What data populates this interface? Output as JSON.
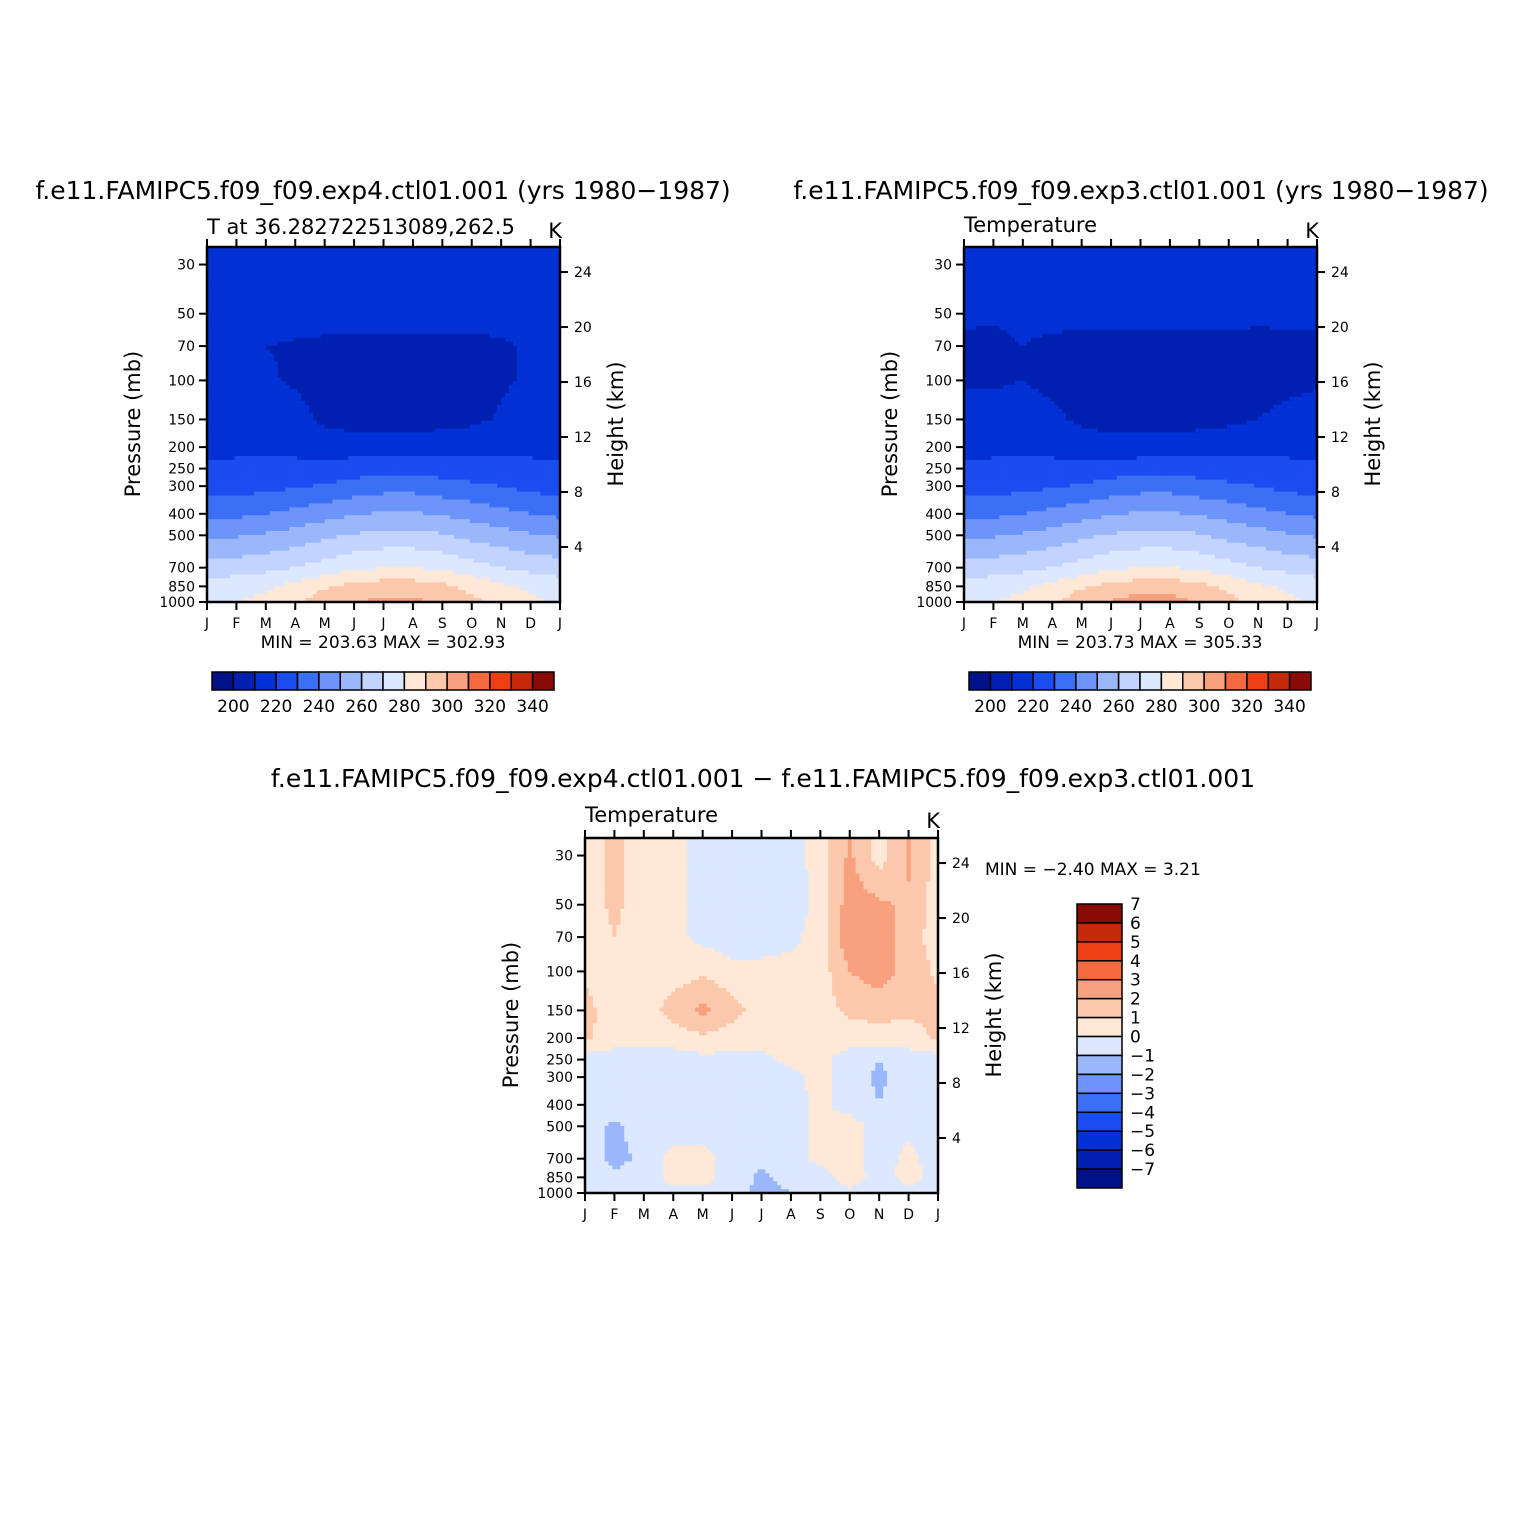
{
  "panels": [
    {
      "title": "f.e11.FAMIPC5.f09_f09.exp4.ctl01.001 (yrs 1980-1987)",
      "left_string": "T at 36.282722513089,262.5",
      "right_string": "K",
      "min_max": "MIN = 203.63 MAX = 302.93"
    },
    {
      "title": "f.e11.FAMIPC5.f09_f09.exp3.ctl01.001 (yrs 1980-1987)",
      "left_string": "Temperature",
      "right_string": "K",
      "min_max": "MIN = 203.73 MAX = 305.33"
    },
    {
      "title": "f.e11.FAMIPC5.f09_f09.exp4.ctl01.001 - f.e11.FAMIPC5.f09_f09.exp3.ctl01.001",
      "left_string": "Temperature",
      "right_string": "K",
      "min_max": "MIN = -2.40 MAX = 3.21"
    }
  ],
  "chart_data": [
    {
      "type": "heatmap",
      "plot": "pressure-month contour",
      "title": "f.e11.FAMIPC5.f09_f09.exp4.ctl01.001 (yrs 1980-1987)",
      "ylabel": "Pressure (mb)",
      "y2label": "Height (km)",
      "x_tick_labels": [
        "J",
        "F",
        "M",
        "A",
        "M",
        "J",
        "J",
        "A",
        "S",
        "O",
        "N",
        "D",
        "J"
      ],
      "y_tick_labels": [
        "30",
        "50",
        "70",
        "100",
        "150",
        "200",
        "250",
        "300",
        "400",
        "500",
        "700",
        "850",
        "1000"
      ],
      "y2_tick_labels": [
        "24",
        "20",
        "16",
        "12",
        "8",
        "4"
      ],
      "y_scale": "log (pressure, reversed)",
      "ylim": [
        1000,
        25
      ],
      "contour_levels": [
        200,
        210,
        220,
        230,
        240,
        250,
        260,
        270,
        280,
        290,
        300,
        310,
        320,
        330,
        340
      ],
      "colorbar_labels": [
        "200",
        "220",
        "240",
        "260",
        "280",
        "300",
        "320",
        "340"
      ],
      "colors": [
        "#00128a",
        "#0021b0",
        "#0331d6",
        "#1a4cf0",
        "#3b6ff5",
        "#6d94f8",
        "#9bb7fb",
        "#c2d4fd",
        "#dbe8ff",
        "#ffe8d6",
        "#fcc8ac",
        "#f8a17f",
        "#f26a3e",
        "#ec3f14",
        "#c42908",
        "#8a0b05"
      ],
      "min": 203.63,
      "max": 302.93,
      "months": [
        "J",
        "F",
        "M",
        "A",
        "M",
        "J",
        "J",
        "A",
        "S",
        "O",
        "N",
        "D",
        "J"
      ],
      "pressure_levels": [
        25,
        30,
        50,
        70,
        100,
        150,
        200,
        250,
        300,
        400,
        500,
        700,
        850,
        1000
      ],
      "values": [
        [
          218,
          219,
          219,
          219,
          219,
          219,
          218,
          216,
          215,
          214,
          215,
          217,
          218
        ],
        [
          217,
          218,
          218,
          218,
          218,
          218,
          216,
          214,
          213,
          213,
          214,
          216,
          217
        ],
        [
          215,
          215,
          215,
          214,
          214,
          213,
          213,
          213,
          213,
          213,
          213,
          214,
          215
        ],
        [
          211,
          212,
          210,
          209,
          208,
          208,
          208,
          208,
          208,
          208,
          209,
          211,
          211
        ],
        [
          211,
          212,
          211,
          209,
          207,
          206,
          206,
          206,
          206,
          207,
          209,
          211,
          211
        ],
        [
          213,
          214,
          214,
          213,
          208,
          206,
          206,
          206,
          207,
          208,
          211,
          213,
          213
        ],
        [
          218,
          219,
          219,
          218,
          216,
          215,
          215,
          215,
          215,
          216,
          217,
          218,
          218
        ],
        [
          221,
          221,
          222,
          222,
          223,
          225,
          226,
          226,
          225,
          224,
          223,
          222,
          221
        ],
        [
          226,
          226,
          227,
          229,
          231,
          234,
          236,
          236,
          234,
          232,
          230,
          227,
          226
        ],
        [
          238,
          238,
          240,
          243,
          246,
          249,
          251,
          251,
          249,
          246,
          243,
          240,
          238
        ],
        [
          249,
          249,
          251,
          254,
          258,
          261,
          263,
          263,
          261,
          257,
          254,
          251,
          249
        ],
        [
          265,
          265,
          267,
          270,
          274,
          278,
          280,
          280,
          278,
          274,
          270,
          267,
          265
        ],
        [
          275,
          276,
          278,
          283,
          289,
          293,
          295,
          295,
          292,
          287,
          282,
          278,
          275
        ],
        [
          279,
          280,
          283,
          289,
          295,
          300,
          302,
          302,
          298,
          292,
          287,
          282,
          279
        ]
      ]
    },
    {
      "type": "heatmap",
      "plot": "pressure-month contour",
      "title": "f.e11.FAMIPC5.f09_f09.exp3.ctl01.001 (yrs 1980-1987)",
      "ylabel": "Pressure (mb)",
      "y2label": "Height (km)",
      "x_tick_labels": [
        "J",
        "F",
        "M",
        "A",
        "M",
        "J",
        "J",
        "A",
        "S",
        "O",
        "N",
        "D",
        "J"
      ],
      "y_tick_labels": [
        "30",
        "50",
        "70",
        "100",
        "150",
        "200",
        "250",
        "300",
        "400",
        "500",
        "700",
        "850",
        "1000"
      ],
      "y2_tick_labels": [
        "24",
        "20",
        "16",
        "12",
        "8",
        "4"
      ],
      "y_scale": "log (pressure, reversed)",
      "ylim": [
        1000,
        25
      ],
      "contour_levels": [
        200,
        210,
        220,
        230,
        240,
        250,
        260,
        270,
        280,
        290,
        300,
        310,
        320,
        330,
        340
      ],
      "colorbar_labels": [
        "200",
        "220",
        "240",
        "260",
        "280",
        "300",
        "320",
        "340"
      ],
      "colors": [
        "#00128a",
        "#0021b0",
        "#0331d6",
        "#1a4cf0",
        "#3b6ff5",
        "#6d94f8",
        "#9bb7fb",
        "#c2d4fd",
        "#dbe8ff",
        "#ffe8d6",
        "#fcc8ac",
        "#f8a17f",
        "#f26a3e",
        "#ec3f14",
        "#c42908",
        "#8a0b05"
      ],
      "min": 203.73,
      "max": 305.33,
      "months": [
        "J",
        "F",
        "M",
        "A",
        "M",
        "J",
        "J",
        "A",
        "S",
        "O",
        "N",
        "D",
        "J"
      ],
      "pressure_levels": [
        25,
        30,
        50,
        70,
        100,
        150,
        200,
        250,
        300,
        400,
        500,
        700,
        850,
        1000
      ],
      "values": [
        [
          218,
          219,
          219,
          219,
          219,
          219,
          218,
          216,
          215,
          214,
          215,
          217,
          218
        ],
        [
          217,
          218,
          218,
          218,
          218,
          218,
          216,
          214,
          213,
          213,
          214,
          216,
          217
        ],
        [
          212,
          211,
          212,
          213,
          213,
          213,
          213,
          213,
          213,
          213,
          212,
          212,
          212
        ],
        [
          208,
          208,
          210,
          208,
          207,
          207,
          207,
          207,
          207,
          207,
          207,
          208,
          208
        ],
        [
          209,
          209,
          210,
          208,
          206,
          205,
          205,
          205,
          205,
          206,
          207,
          208,
          209
        ],
        [
          213,
          213,
          213,
          212,
          208,
          206,
          206,
          206,
          207,
          208,
          210,
          212,
          213
        ],
        [
          218,
          219,
          219,
          218,
          216,
          214,
          214,
          214,
          215,
          216,
          217,
          218,
          218
        ],
        [
          221,
          221,
          222,
          222,
          223,
          225,
          226,
          226,
          225,
          224,
          223,
          222,
          221
        ],
        [
          226,
          226,
          227,
          229,
          231,
          234,
          236,
          236,
          234,
          232,
          230,
          227,
          226
        ],
        [
          238,
          238,
          240,
          243,
          246,
          249,
          251,
          251,
          249,
          246,
          243,
          240,
          238
        ],
        [
          249,
          249,
          251,
          254,
          258,
          261,
          263,
          263,
          261,
          257,
          254,
          251,
          249
        ],
        [
          265,
          265,
          267,
          270,
          274,
          278,
          280,
          280,
          278,
          274,
          270,
          267,
          265
        ],
        [
          275,
          276,
          278,
          283,
          289,
          293,
          296,
          296,
          293,
          288,
          282,
          278,
          275
        ],
        [
          279,
          280,
          283,
          289,
          295,
          301,
          305,
          304,
          299,
          293,
          287,
          282,
          279
        ]
      ]
    },
    {
      "type": "heatmap",
      "plot": "pressure-month contour (difference)",
      "title": "f.e11.FAMIPC5.f09_f09.exp4.ctl01.001 - f.e11.FAMIPC5.f09_f09.exp3.ctl01.001",
      "ylabel": "Pressure (mb)",
      "y2label": "Height (km)",
      "x_tick_labels": [
        "J",
        "F",
        "M",
        "A",
        "M",
        "J",
        "J",
        "A",
        "S",
        "O",
        "N",
        "D",
        "J"
      ],
      "y_tick_labels": [
        "30",
        "50",
        "70",
        "100",
        "150",
        "200",
        "250",
        "300",
        "400",
        "500",
        "700",
        "850",
        "1000"
      ],
      "y2_tick_labels": [
        "24",
        "20",
        "16",
        "12",
        "8",
        "4"
      ],
      "y_scale": "log (pressure, reversed)",
      "ylim": [
        1000,
        25
      ],
      "contour_levels": [
        -7,
        -6,
        -5,
        -4,
        -3,
        -2,
        -1,
        0,
        1,
        2,
        3,
        4,
        5,
        6,
        7
      ],
      "colorbar_labels": [
        "7",
        "6",
        "5",
        "4",
        "3",
        "2",
        "1",
        "0",
        "-1",
        "-2",
        "-3",
        "-4",
        "-5",
        "-6",
        "-7"
      ],
      "colors": [
        "#00128a",
        "#0021b0",
        "#0331d6",
        "#1a4cf0",
        "#3b6ff5",
        "#6d94f8",
        "#9bb7fb",
        "#dbe8ff",
        "#ffe8d6",
        "#fcc8ac",
        "#f8a17f",
        "#f26a3e",
        "#ec3f14",
        "#c42908",
        "#8a0b05"
      ],
      "min": -2.4,
      "max": 3.21,
      "months": [
        "J",
        "F",
        "M",
        "A",
        "M",
        "J",
        "J",
        "A",
        "S",
        "O",
        "N",
        "D",
        "J"
      ],
      "pressure_levels": [
        25,
        30,
        50,
        70,
        100,
        150,
        200,
        250,
        300,
        400,
        500,
        700,
        850,
        1000
      ],
      "values": [
        [
          0.5,
          1.2,
          0.5,
          0.5,
          -0.5,
          -0.5,
          -0.5,
          -0.5,
          0.5,
          2.0,
          0.5,
          2.0,
          0.5
        ],
        [
          0.5,
          1.3,
          0.5,
          0.5,
          -0.5,
          -0.5,
          -0.5,
          -0.5,
          0.5,
          2.2,
          0.5,
          2.2,
          0.5
        ],
        [
          0.5,
          1.2,
          0.5,
          0.5,
          -0.5,
          -0.5,
          -0.5,
          -0.5,
          0.3,
          2.6,
          2.2,
          1.8,
          0.5
        ],
        [
          0.5,
          1.0,
          0.5,
          0.3,
          -0.3,
          -0.5,
          -0.5,
          -0.3,
          0.5,
          2.8,
          2.6,
          1.5,
          0.5
        ],
        [
          0.8,
          0.5,
          0.5,
          0.5,
          0.8,
          0.3,
          0.3,
          0.4,
          0.5,
          2.0,
          2.5,
          1.6,
          0.8
        ],
        [
          1.3,
          0.5,
          0.5,
          1.4,
          2.3,
          1.4,
          0.5,
          0.5,
          0.6,
          1.2,
          1.4,
          1.2,
          1.3
        ],
        [
          1.2,
          0.5,
          0.5,
          0.5,
          0.8,
          0.5,
          0.5,
          0.5,
          0.5,
          0.5,
          0.5,
          0.5,
          1.2
        ],
        [
          -0.5,
          -0.5,
          -0.5,
          -0.5,
          -0.3,
          -0.3,
          -0.3,
          0.3,
          0.3,
          -0.5,
          -1.0,
          -0.5,
          -0.5
        ],
        [
          -0.5,
          -0.5,
          -0.5,
          -0.5,
          -0.5,
          -0.5,
          -0.5,
          -0.3,
          0.4,
          -0.5,
          -1.2,
          -0.5,
          -0.5
        ],
        [
          -0.5,
          -0.5,
          -0.5,
          -0.5,
          -0.5,
          -0.5,
          -0.5,
          -0.5,
          0.3,
          -0.5,
          -1.0,
          -0.5,
          -0.5
        ],
        [
          -0.5,
          -1.2,
          -0.5,
          -0.5,
          -0.5,
          -0.5,
          -0.5,
          -0.5,
          0.3,
          0.5,
          -0.5,
          -0.3,
          -0.5
        ],
        [
          -0.5,
          -1.3,
          -0.8,
          0.4,
          0.4,
          -0.5,
          -0.8,
          -0.5,
          0.3,
          0.5,
          -0.5,
          0.3,
          -0.5
        ],
        [
          -0.5,
          -0.8,
          -0.5,
          0.3,
          0.4,
          -0.5,
          -1.2,
          -0.7,
          -0.5,
          0.6,
          -0.5,
          0.4,
          -0.5
        ],
        [
          -0.3,
          -0.5,
          -0.5,
          -0.3,
          -0.3,
          -0.5,
          -1.3,
          -1.0,
          -0.5,
          -0.3,
          -0.5,
          -0.3,
          -0.3
        ]
      ]
    }
  ]
}
